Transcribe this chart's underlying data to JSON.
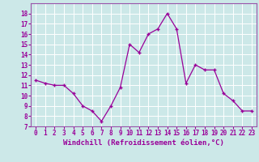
{
  "x": [
    0,
    1,
    2,
    3,
    4,
    5,
    6,
    7,
    8,
    9,
    10,
    11,
    12,
    13,
    14,
    15,
    16,
    17,
    18,
    19,
    20,
    21,
    22,
    23
  ],
  "y": [
    11.5,
    11.2,
    11.0,
    11.0,
    10.2,
    9.0,
    8.5,
    7.5,
    9.0,
    10.8,
    15.0,
    14.2,
    16.0,
    16.5,
    18.0,
    16.5,
    11.2,
    13.0,
    12.5,
    12.5,
    10.2,
    9.5,
    8.5,
    8.5
  ],
  "color": "#990099",
  "bg_color": "#cce8e8",
  "xlabel": "Windchill (Refroidissement éolien,°C)",
  "ylim": [
    7,
    19
  ],
  "xlim": [
    -0.5,
    23.5
  ],
  "yticks": [
    7,
    8,
    9,
    10,
    11,
    12,
    13,
    14,
    15,
    16,
    17,
    18
  ],
  "xticks": [
    0,
    1,
    2,
    3,
    4,
    5,
    6,
    7,
    8,
    9,
    10,
    11,
    12,
    13,
    14,
    15,
    16,
    17,
    18,
    19,
    20,
    21,
    22,
    23
  ],
  "grid_color": "#ffffff",
  "tick_fontsize": 5.5,
  "xlabel_fontsize": 6.5,
  "marker": "+",
  "markersize": 3.5,
  "linewidth": 0.9,
  "spine_color": "#9955aa"
}
